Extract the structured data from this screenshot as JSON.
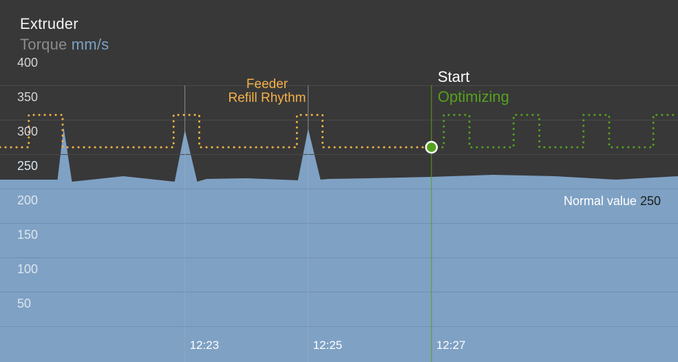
{
  "header": {
    "title": "Extruder",
    "metric": "Torque",
    "unit": "mm/s"
  },
  "chart_data": {
    "type": "area",
    "title": "Extruder",
    "ylabel": "Torque mm/s",
    "ylim": [
      25,
      410
    ],
    "yticks": [
      400,
      350,
      300,
      250,
      200,
      150,
      100,
      50
    ],
    "xlim": [
      "12:20",
      "12:31"
    ],
    "xtick_labels": [
      "12:23",
      "12:25",
      "12:27"
    ],
    "grid": true,
    "series": [
      {
        "name": "Torque",
        "color": "#7fa1c4",
        "x": [
          "12:20",
          "12:20:56",
          "12:21:02",
          "12:21:10",
          "12:22",
          "12:22:50",
          "12:23",
          "12:23:12",
          "12:23:21",
          "12:24",
          "12:24:50",
          "12:25",
          "12:25:12",
          "12:25:20",
          "12:26",
          "12:27",
          "12:28",
          "12:29",
          "12:30",
          "12:31"
        ],
        "values": [
          263,
          263,
          339,
          260,
          268,
          260,
          335,
          260,
          264,
          265,
          262,
          337,
          263,
          264,
          265,
          267,
          270,
          268,
          263,
          268
        ]
      },
      {
        "name": "Feeder Refill Rhythm",
        "color": "#f5b148",
        "style": "dotted",
        "x": [
          "12:20",
          "12:20:28",
          "12:20:28",
          "12:21:01",
          "12:21:01",
          "12:22:49",
          "12:22:49",
          "12:23:14",
          "12:23:14",
          "12:24:49",
          "12:24:49",
          "12:25:14",
          "12:25:14",
          "12:27"
        ],
        "values": [
          310,
          310,
          357,
          357,
          310,
          310,
          357,
          357,
          310,
          310,
          357,
          357,
          310,
          310
        ]
      },
      {
        "name": "Optimizing",
        "color": "#56a01f",
        "style": "dotted",
        "x": [
          "12:27",
          "12:27:12",
          "12:27:12",
          "12:27:37",
          "12:27:37",
          "12:28:20",
          "12:28:20",
          "12:28:45",
          "12:28:45",
          "12:29:28",
          "12:29:28",
          "12:29:53",
          "12:29:53",
          "12:30:36",
          "12:30:36",
          "12:31"
        ],
        "values": [
          310,
          310,
          357,
          357,
          310,
          310,
          357,
          357,
          310,
          310,
          357,
          357,
          310,
          310,
          357,
          357
        ]
      }
    ],
    "events": [
      {
        "time": "12:27",
        "label": "Start",
        "sublabel": "Optimizing",
        "value": 310
      }
    ],
    "annotations": [
      {
        "lines": [
          "Feeder",
          "Refill Rhythm"
        ]
      }
    ],
    "reference": {
      "label": "Normal value",
      "value": 250
    }
  }
}
